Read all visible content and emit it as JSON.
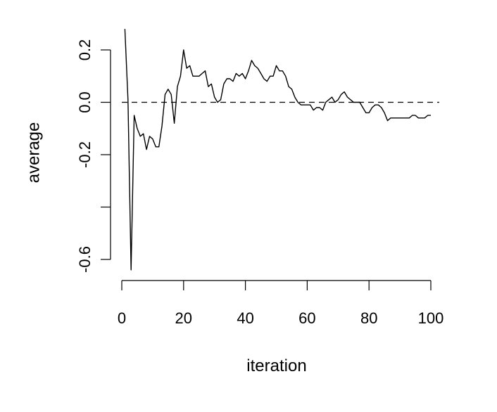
{
  "chart_data": {
    "type": "line",
    "title": "",
    "xlabel": "iteration",
    "ylabel": "average",
    "xlim": [
      0,
      100
    ],
    "ylim": [
      -0.6,
      0.2
    ],
    "x_ticks": [
      0,
      20,
      40,
      60,
      80,
      100
    ],
    "x_tick_labels": [
      "0",
      "20",
      "40",
      "60",
      "80",
      "100"
    ],
    "y_ticks": [
      -0.6,
      -0.4,
      -0.2,
      0.0,
      0.2
    ],
    "y_tick_labels": [
      "-0.6",
      "",
      "-0.2",
      "0.0",
      "0.2"
    ],
    "reference_line": {
      "y": 0.0,
      "style": "dashed"
    },
    "grid": false,
    "series": [
      {
        "x": [
          1,
          2,
          3,
          4,
          5,
          6,
          7,
          8,
          9,
          10,
          11,
          12,
          13,
          14,
          15,
          16,
          17,
          18,
          19,
          20,
          21,
          22,
          23,
          24,
          25,
          26,
          27,
          28,
          29,
          30,
          31,
          32,
          33,
          34,
          35,
          36,
          37,
          38,
          39,
          40,
          41,
          42,
          43,
          44,
          45,
          46,
          47,
          48,
          49,
          50,
          51,
          52,
          53,
          54,
          55,
          56,
          57,
          58,
          59,
          60,
          61,
          62,
          63,
          64,
          65,
          66,
          67,
          68,
          69,
          70,
          71,
          72,
          73,
          74,
          75,
          76,
          77,
          78,
          79,
          80,
          81,
          82,
          83,
          84,
          85,
          86,
          87,
          88,
          89,
          90,
          91,
          92,
          93,
          94,
          95,
          96,
          97,
          98,
          99,
          100
        ],
        "y": [
          0.28,
          0.01,
          -0.64,
          -0.05,
          -0.1,
          -0.13,
          -0.12,
          -0.18,
          -0.13,
          -0.14,
          -0.17,
          -0.17,
          -0.09,
          0.03,
          0.05,
          0.03,
          -0.08,
          0.06,
          0.1,
          0.2,
          0.13,
          0.14,
          0.1,
          0.1,
          0.1,
          0.11,
          0.12,
          0.06,
          0.07,
          0.02,
          0.0,
          0.01,
          0.07,
          0.09,
          0.09,
          0.08,
          0.11,
          0.1,
          0.11,
          0.09,
          0.12,
          0.16,
          0.14,
          0.13,
          0.11,
          0.09,
          0.08,
          0.1,
          0.1,
          0.14,
          0.12,
          0.12,
          0.1,
          0.06,
          0.05,
          0.02,
          0.0,
          -0.01,
          -0.01,
          -0.01,
          -0.01,
          -0.03,
          -0.02,
          -0.02,
          -0.03,
          0.0,
          0.01,
          0.02,
          0.0,
          0.01,
          0.03,
          0.04,
          0.02,
          0.01,
          0.0,
          0.0,
          0.0,
          -0.02,
          -0.04,
          -0.04,
          -0.02,
          -0.01,
          -0.01,
          -0.02,
          -0.04,
          -0.07,
          -0.06,
          -0.06,
          -0.06,
          -0.06,
          -0.06,
          -0.06,
          -0.06,
          -0.05,
          -0.05,
          -0.06,
          -0.06,
          -0.06,
          -0.05,
          -0.05
        ]
      }
    ]
  }
}
